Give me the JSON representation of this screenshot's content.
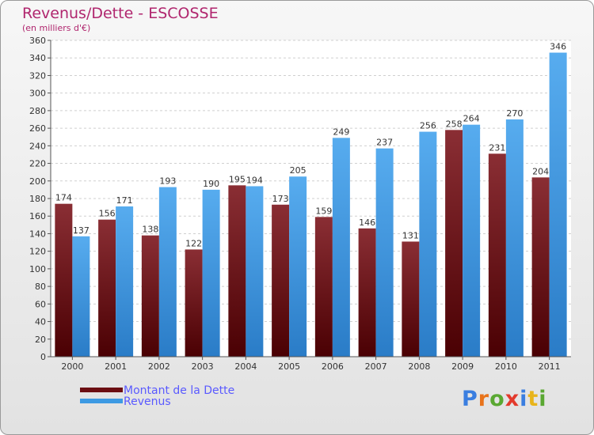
{
  "chart_data": {
    "type": "bar",
    "title": "Revenus/Dette - ESCOSSE",
    "subtitle": "(en milliers d'€)",
    "xlabel": "",
    "ylabel": "",
    "ylim": [
      0,
      360
    ],
    "ytick_step": 20,
    "grid": true,
    "categories": [
      "2000",
      "2001",
      "2002",
      "2003",
      "2004",
      "2005",
      "2006",
      "2007",
      "2008",
      "2009",
      "2010",
      "2011"
    ],
    "series": [
      {
        "name": "Montant de la Dette",
        "color": "#7a1f24",
        "values": [
          174,
          156,
          138,
          122,
          195,
          173,
          159,
          146,
          131,
          258,
          231,
          204
        ]
      },
      {
        "name": "Revenus",
        "color": "#3d9ae3",
        "values": [
          137,
          171,
          193,
          190,
          194,
          205,
          249,
          237,
          256,
          264,
          270,
          346
        ]
      }
    ],
    "legend_position": "bottom-left"
  },
  "legend": {
    "debt_label": "Montant de la Dette",
    "revenue_label": "Revenus",
    "debt_color": "#6b0e12",
    "revenue_color": "#3d9ae3"
  },
  "logo": {
    "letters": [
      "P",
      "r",
      "o",
      "x",
      "i",
      "t",
      "i"
    ],
    "colors": [
      "#3a7ee0",
      "#e8731b",
      "#5aa832",
      "#e33a2c",
      "#3a7ee0",
      "#e8b41b",
      "#5aa832"
    ]
  }
}
